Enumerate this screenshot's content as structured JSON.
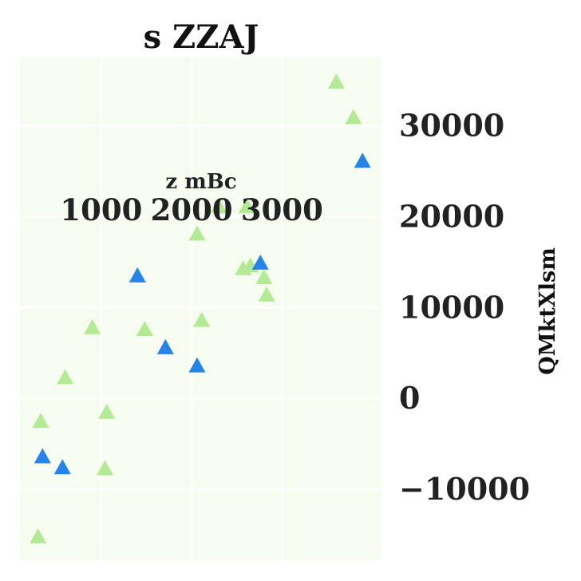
{
  "chart_data": {
    "type": "scatter",
    "title": "s  ZZAJ",
    "xlabel": "z mBc",
    "ylabel": "QMktXlsm",
    "xlim": [
      100,
      4100
    ],
    "ylim": [
      -17800,
      37500
    ],
    "xticks": [
      1000,
      2000,
      3000
    ],
    "yticks": [
      -10000,
      0,
      10000,
      20000,
      30000
    ],
    "xaxis_position": "top, inside plot",
    "yaxis_position": "right",
    "grid": true,
    "legend": "none",
    "colors": {
      "background": "#f7fcf0",
      "grid": "#ffffff",
      "series_a": "#b2eb93",
      "series_b": "#2584eb"
    },
    "series": [
      {
        "color": "#b2eb93",
        "marker": "triangle",
        "points": [
          [
            3600,
            34800
          ],
          [
            3790,
            30900
          ],
          [
            2300,
            21100
          ],
          [
            2610,
            21100
          ],
          [
            2060,
            18100
          ],
          [
            2570,
            14300
          ],
          [
            2650,
            14600
          ],
          [
            2800,
            13300
          ],
          [
            2830,
            11400
          ],
          [
            2110,
            8600
          ],
          [
            900,
            7800
          ],
          [
            1480,
            7600
          ],
          [
            600,
            2300
          ],
          [
            330,
            -2500
          ],
          [
            1060,
            -1500
          ],
          [
            1040,
            -7700
          ],
          [
            300,
            -15200
          ]
        ]
      },
      {
        "color": "#2584eb",
        "marker": "triangle",
        "points": [
          [
            3890,
            26100
          ],
          [
            2760,
            14900
          ],
          [
            1400,
            13500
          ],
          [
            1710,
            5600
          ],
          [
            2060,
            3600
          ],
          [
            350,
            -6400
          ],
          [
            570,
            -7600
          ]
        ]
      }
    ]
  }
}
